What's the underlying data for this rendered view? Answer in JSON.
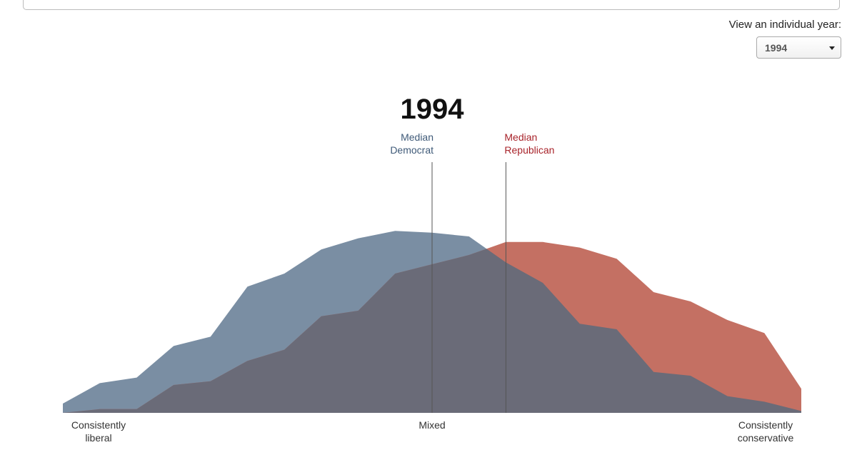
{
  "controls": {
    "year_label": "View an individual year:",
    "year_select": "1994"
  },
  "chart_data": {
    "type": "area",
    "title": "1994",
    "x": [
      0,
      1,
      2,
      3,
      4,
      5,
      6,
      7,
      8,
      9,
      10,
      11,
      12,
      13,
      14,
      15,
      16,
      17,
      18,
      19,
      20
    ],
    "xlim": [
      0,
      20
    ],
    "xticks": [
      {
        "value": 0,
        "label": "Consistently\nliberal"
      },
      {
        "value": 10,
        "label": "Mixed"
      },
      {
        "value": 20,
        "label": "Consistently\nconservative"
      }
    ],
    "ylim": [
      0,
      100
    ],
    "overlap_color": "#6a6b78",
    "series": [
      {
        "name": "Democrat",
        "color": "#7a8ea3",
        "values": [
          5,
          16,
          19,
          36,
          41,
          68,
          75,
          88,
          94,
          98,
          97,
          95,
          81,
          70,
          48,
          45,
          22,
          20,
          9,
          6,
          1
        ]
      },
      {
        "name": "Republican",
        "color": "#c47063",
        "values": [
          0,
          2,
          2,
          15,
          17,
          28,
          34,
          52,
          55,
          75,
          80,
          85,
          92,
          92,
          89,
          83,
          65,
          60,
          50,
          43,
          13
        ]
      }
    ],
    "medians": [
      {
        "label": "Median\nDemocrat",
        "x": 10,
        "color": "#3f5a78",
        "anchor": "end"
      },
      {
        "label": "Median\nRepublican",
        "x": 12,
        "color": "#a8232a",
        "anchor": "start"
      }
    ]
  }
}
